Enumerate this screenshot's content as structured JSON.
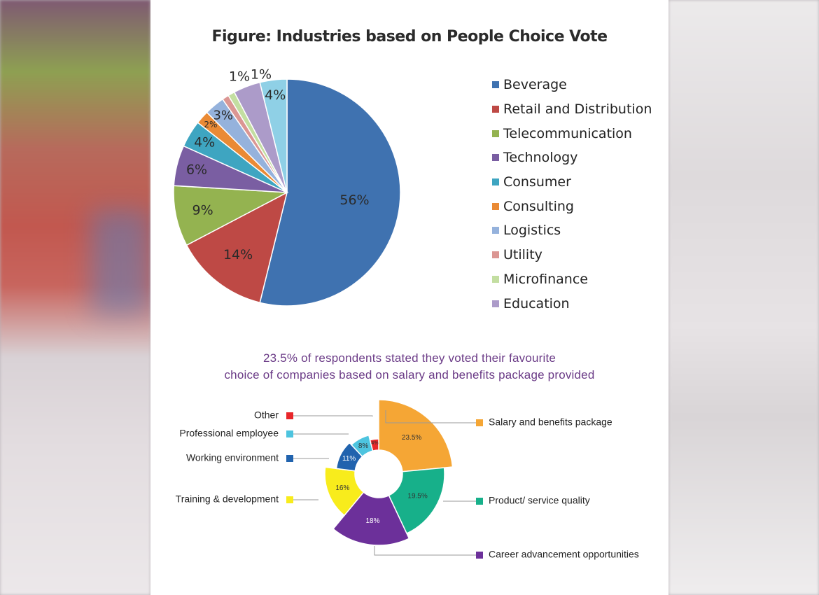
{
  "chart_data": [
    {
      "type": "pie",
      "title": "Figure: Industries based on People Choice Vote",
      "legend_position": "right",
      "categories": [
        "Beverage",
        "Retail and Distribution",
        "Telecommunication",
        "Technology",
        "Consumer",
        "Consulting",
        "Logistics",
        "Utility",
        "Microfinance",
        "Education"
      ],
      "values": [
        56,
        14,
        9,
        6,
        4,
        2,
        3,
        1,
        1,
        4
      ],
      "labels": [
        "56%",
        "14%",
        "9%",
        "6%",
        "4%",
        "2%",
        "3%",
        "1%",
        "1%",
        "4%"
      ],
      "colors": [
        "#3f72b0",
        "#be4945",
        "#94b350",
        "#7a5ea2",
        "#3ea5c1",
        "#ea8a35",
        "#95b2dc",
        "#db9693",
        "#c3dea1",
        "#ac9bc9"
      ],
      "extra_slice": {
        "value": 4,
        "label": "4%",
        "color": "#8fd0e6"
      }
    },
    {
      "type": "pie",
      "title": "23.5% of respondents stated they voted their favourite choice of companies based on salary and benefits package provided",
      "categories": [
        "Salary and benefits package",
        "Product/ service quality",
        "Career advancement opportunities",
        "Training & development",
        "Working environment",
        "Professional employee",
        "Other"
      ],
      "values": [
        23.5,
        19.5,
        18,
        16,
        11,
        8,
        4
      ],
      "labels": [
        "23.5%",
        "19.5%",
        "18%",
        "16%",
        "11%",
        "8%",
        "4%"
      ],
      "colors": [
        "#f5a635",
        "#17b08a",
        "#6c309a",
        "#f8ec1c",
        "#2163ae",
        "#4dc4df",
        "#e8262a"
      ]
    }
  ],
  "caption_line1": "23.5% of respondents stated they voted their favourite",
  "caption_line2": "choice of companies based on salary and benefits package provided"
}
